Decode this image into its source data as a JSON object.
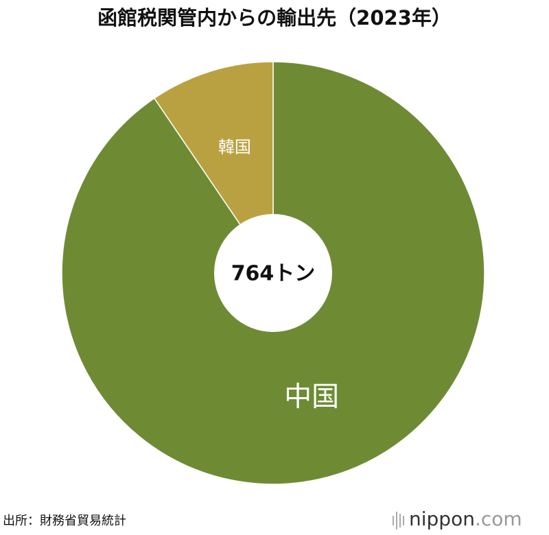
{
  "chart_data": {
    "type": "pie",
    "title": "函館税関管内からの輸出先（2023年）",
    "categories": [
      "中国",
      "韓国"
    ],
    "values": [
      90.5,
      9.5
    ],
    "colors": [
      "#6e8b34",
      "#b9a142"
    ],
    "center_label": "764トン"
  },
  "footer": {
    "source": "出所：財務省貿易統計",
    "brand": "nippon",
    "domain": ".com"
  }
}
